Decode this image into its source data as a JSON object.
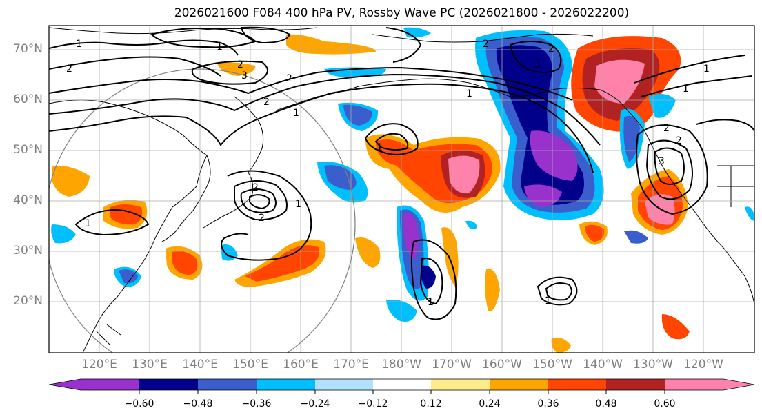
{
  "title": "2026021600 F084 400 hPa PV, Rossby Wave PC (2026021800 - 2026022200)",
  "lat_labels": [
    "70°N",
    "60°N",
    "50°N",
    "40°N",
    "30°N",
    "20°N"
  ],
  "lon_labels": [
    "120°E",
    "130°E",
    "140°E",
    "150°E",
    "160°E",
    "170°E",
    "180°W",
    "170°W",
    "160°W",
    "150°W",
    "140°W",
    "130°W",
    "120°W"
  ],
  "colorbar": {
    "ticks": [
      "−0.60",
      "−0.48",
      "−0.36",
      "−0.24",
      "−0.12",
      "0.12",
      "0.24",
      "0.36",
      "0.48",
      "0.60"
    ],
    "colors": [
      "#9932cc",
      "#00008b",
      "#3a5fcd",
      "#00bfff",
      "#b0e2ff",
      "#ffffff",
      "#ffec8b",
      "#ffa500",
      "#ff4500",
      "#b22222",
      "#ff82ab"
    ]
  },
  "contour_labels": [
    "1",
    "2",
    "3"
  ]
}
